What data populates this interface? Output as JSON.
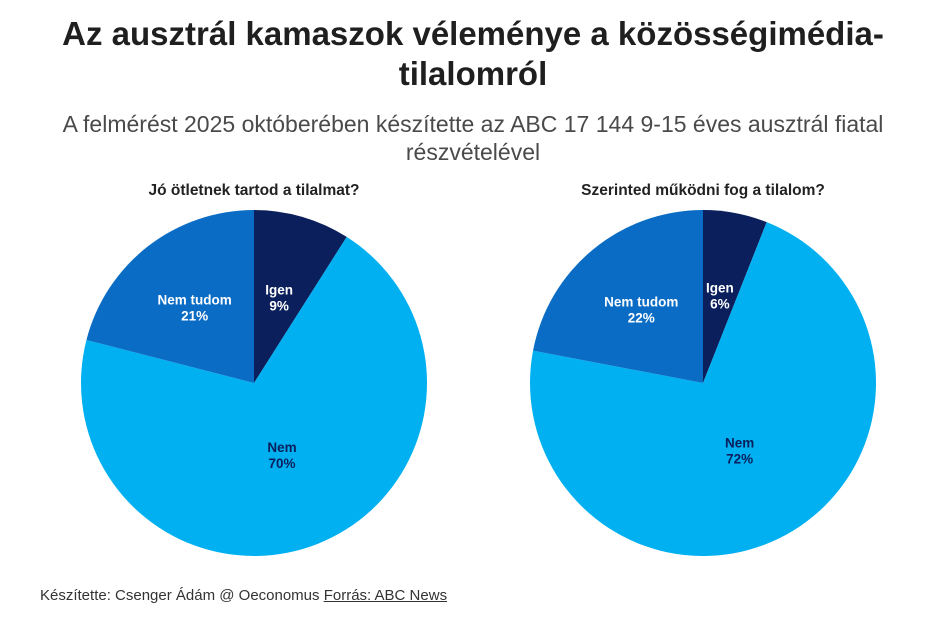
{
  "title": "Az ausztrál kamaszok véleménye a közösségimédia-tilalomról",
  "subtitle": "A felmérést 2025 októberében készítette az ABC 17 144 9-15 éves ausztrál fiatal részvételével",
  "footer": {
    "credit": "Készítette: Csenger Ádám @ Oeconomus",
    "source": "Forrás: ABC News"
  },
  "chart_data": [
    {
      "type": "pie",
      "title": "Jó ötletnek tartod a tilalmat?",
      "slices": [
        {
          "label": "Igen",
          "value": 9,
          "display": "9%",
          "color": "#0a1f5c",
          "text_color": "#ffffff"
        },
        {
          "label": "Nem",
          "value": 70,
          "display": "70%",
          "color": "#00b0f0",
          "text_color": "#0a1f5c"
        },
        {
          "label": "Nem tudom",
          "value": 21,
          "display": "21%",
          "color": "#0a6cc4",
          "text_color": "#ffffff"
        }
      ]
    },
    {
      "type": "pie",
      "title": "Szerinted működni fog a tilalom?",
      "slices": [
        {
          "label": "Igen",
          "value": 6,
          "display": "6%",
          "color": "#0a1f5c",
          "text_color": "#ffffff"
        },
        {
          "label": "Nem",
          "value": 72,
          "display": "72%",
          "color": "#00b0f0",
          "text_color": "#0a1f5c"
        },
        {
          "label": "Nem tudom",
          "value": 22,
          "display": "22%",
          "color": "#0a6cc4",
          "text_color": "#ffffff"
        }
      ]
    }
  ]
}
